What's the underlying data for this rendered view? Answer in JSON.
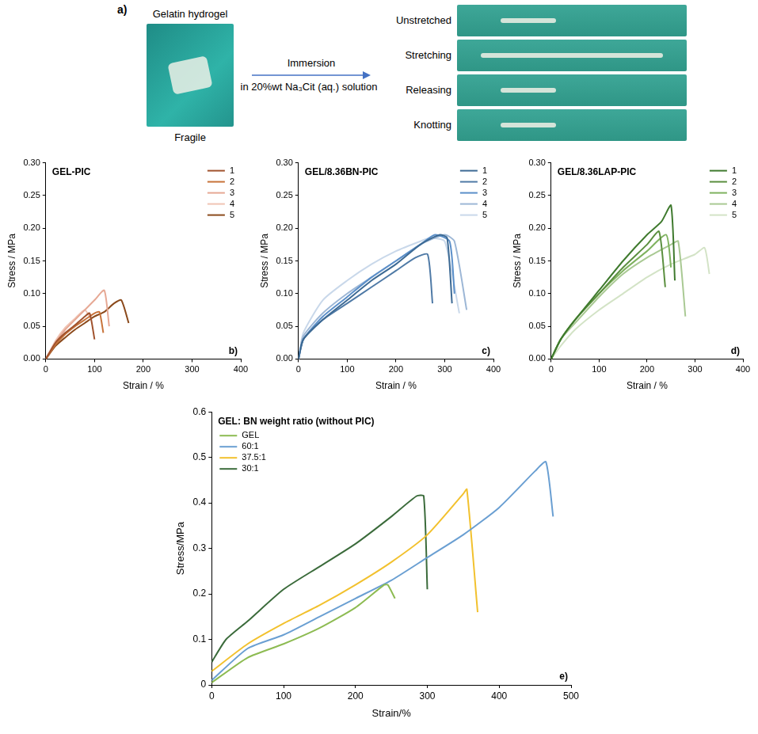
{
  "panel_a": {
    "label": "a)",
    "left": {
      "title": "Gelatin hydrogel",
      "caption": "Fragile"
    },
    "arrow": {
      "above": "Immersion",
      "below": "in 20%wt Na₃Cit (aq.) solution"
    },
    "steps": [
      "Unstretched",
      "Stretching",
      "Releasing",
      "Knotting"
    ]
  },
  "chart_data": [
    {
      "type": "line",
      "title": "GEL-PIC",
      "panel": "b)",
      "x_label": "Strain / %",
      "y_label": "Stress / MPa",
      "xlim": [
        0,
        400
      ],
      "xticks": [
        0,
        100,
        200,
        300,
        400
      ],
      "ylim": [
        0,
        0.3
      ],
      "yticks": [
        {
          "value": 0,
          "label": "0.00"
        },
        {
          "value": 0.05,
          "label": "0.05"
        },
        {
          "value": 0.1,
          "label": "0.10"
        },
        {
          "value": 0.15,
          "label": "0.15"
        },
        {
          "value": 0.2,
          "label": "0.20"
        },
        {
          "value": 0.25,
          "label": "0.25"
        },
        {
          "value": 0.3,
          "label": "0.30"
        }
      ],
      "grid": false,
      "legend": "top-right",
      "series": [
        {
          "name": "1",
          "color": "#a0522d",
          "x": [
            0,
            20,
            40,
            60,
            80,
            90,
            100
          ],
          "values": [
            0,
            0.025,
            0.04,
            0.052,
            0.065,
            0.07,
            0.03
          ]
        },
        {
          "name": "2",
          "color": "#c8733a",
          "x": [
            0,
            20,
            40,
            60,
            80,
            100,
            110,
            118
          ],
          "values": [
            0,
            0.022,
            0.038,
            0.05,
            0.06,
            0.07,
            0.072,
            0.04
          ]
        },
        {
          "name": "3",
          "color": "#e6a894",
          "x": [
            0,
            20,
            40,
            60,
            80,
            100,
            120,
            130
          ],
          "values": [
            0,
            0.025,
            0.045,
            0.06,
            0.075,
            0.09,
            0.105,
            0.05
          ]
        },
        {
          "name": "4",
          "color": "#f0c4b4",
          "x": [
            0,
            20,
            40,
            60,
            80,
            92
          ],
          "values": [
            0,
            0.028,
            0.048,
            0.062,
            0.075,
            0.062
          ]
        },
        {
          "name": "5",
          "color": "#8b4a1c",
          "x": [
            0,
            20,
            40,
            60,
            80,
            100,
            120,
            140,
            155,
            170
          ],
          "values": [
            0,
            0.02,
            0.033,
            0.045,
            0.055,
            0.065,
            0.072,
            0.085,
            0.09,
            0.055
          ]
        }
      ]
    },
    {
      "type": "line",
      "title": "GEL/8.36BN-PIC",
      "panel": "c)",
      "x_label": "Strain / %",
      "y_label": "Stress / MPa",
      "xlim": [
        0,
        400
      ],
      "xticks": [
        0,
        100,
        200,
        300,
        400
      ],
      "ylim": [
        0,
        0.3
      ],
      "yticks": [
        {
          "value": 0,
          "label": "0.00"
        },
        {
          "value": 0.05,
          "label": "0.05"
        },
        {
          "value": 0.1,
          "label": "0.10"
        },
        {
          "value": 0.15,
          "label": "0.15"
        },
        {
          "value": 0.2,
          "label": "0.20"
        },
        {
          "value": 0.25,
          "label": "0.25"
        },
        {
          "value": 0.3,
          "label": "0.30"
        }
      ],
      "grid": false,
      "legend": "top-right",
      "series": [
        {
          "name": "1",
          "color": "#3d6a94",
          "x": [
            0,
            10,
            50,
            100,
            150,
            200,
            250,
            290,
            305,
            315
          ],
          "values": [
            0,
            0.03,
            0.06,
            0.09,
            0.12,
            0.145,
            0.175,
            0.19,
            0.185,
            0.085
          ]
        },
        {
          "name": "2",
          "color": "#4f7aa6",
          "x": [
            0,
            10,
            50,
            100,
            150,
            200,
            240,
            265,
            275
          ],
          "values": [
            0,
            0.03,
            0.06,
            0.085,
            0.11,
            0.135,
            0.155,
            0.16,
            0.085
          ]
        },
        {
          "name": "3",
          "color": "#5b8fc9",
          "x": [
            0,
            10,
            50,
            100,
            150,
            200,
            250,
            280,
            310,
            320
          ],
          "values": [
            0,
            0.03,
            0.065,
            0.095,
            0.125,
            0.15,
            0.175,
            0.19,
            0.18,
            0.1
          ]
        },
        {
          "name": "4",
          "color": "#9db7d6",
          "x": [
            0,
            10,
            50,
            100,
            150,
            200,
            250,
            300,
            320,
            345
          ],
          "values": [
            0,
            0.035,
            0.07,
            0.1,
            0.125,
            0.15,
            0.175,
            0.19,
            0.18,
            0.075
          ]
        },
        {
          "name": "5",
          "color": "#c9d8ea",
          "x": [
            0,
            10,
            50,
            100,
            150,
            200,
            250,
            270,
            300,
            330
          ],
          "values": [
            0,
            0.04,
            0.09,
            0.12,
            0.145,
            0.165,
            0.18,
            0.185,
            0.18,
            0.07
          ]
        }
      ]
    },
    {
      "type": "line",
      "title": "GEL/8.36LAP-PIC",
      "panel": "d)",
      "x_label": "Strain / %",
      "y_label": "Stress / MPa",
      "xlim": [
        0,
        400
      ],
      "xticks": [
        0,
        100,
        200,
        300,
        400
      ],
      "ylim": [
        0,
        0.3
      ],
      "yticks": [
        {
          "value": 0,
          "label": "0.00"
        },
        {
          "value": 0.05,
          "label": "0.05"
        },
        {
          "value": 0.1,
          "label": "0.10"
        },
        {
          "value": 0.15,
          "label": "0.15"
        },
        {
          "value": 0.2,
          "label": "0.20"
        },
        {
          "value": 0.25,
          "label": "0.25"
        },
        {
          "value": 0.3,
          "label": "0.30"
        }
      ],
      "grid": false,
      "legend": "top-right",
      "series": [
        {
          "name": "1",
          "color": "#3f7a2e",
          "x": [
            0,
            20,
            50,
            100,
            150,
            200,
            230,
            250,
            258
          ],
          "values": [
            0,
            0.03,
            0.06,
            0.105,
            0.15,
            0.19,
            0.21,
            0.235,
            0.12
          ]
        },
        {
          "name": "2",
          "color": "#5b8f3f",
          "x": [
            0,
            20,
            50,
            100,
            150,
            200,
            225,
            238
          ],
          "values": [
            0,
            0.03,
            0.06,
            0.1,
            0.14,
            0.175,
            0.195,
            0.11
          ]
        },
        {
          "name": "3",
          "color": "#7fb25f",
          "x": [
            0,
            20,
            50,
            100,
            150,
            200,
            240,
            250
          ],
          "values": [
            0,
            0.03,
            0.06,
            0.1,
            0.135,
            0.165,
            0.19,
            0.14
          ]
        },
        {
          "name": "4",
          "color": "#a9c993",
          "x": [
            0,
            20,
            50,
            100,
            150,
            200,
            250,
            265,
            280
          ],
          "values": [
            0,
            0.03,
            0.055,
            0.095,
            0.13,
            0.155,
            0.175,
            0.18,
            0.065
          ]
        },
        {
          "name": "5",
          "color": "#d3e3c6",
          "x": [
            0,
            20,
            50,
            100,
            150,
            200,
            250,
            300,
            320,
            330
          ],
          "values": [
            0,
            0.02,
            0.045,
            0.075,
            0.1,
            0.125,
            0.145,
            0.16,
            0.17,
            0.13
          ]
        }
      ]
    },
    {
      "type": "line",
      "title": "GEL: BN weight ratio (without PIC)",
      "panel": "e)",
      "x_label": "Strain/%",
      "y_label": "Stress/MPa",
      "xlim": [
        0,
        500
      ],
      "xticks": [
        0,
        100,
        200,
        300,
        400,
        500
      ],
      "ylim": [
        0,
        0.6
      ],
      "yticks": [
        0,
        0.1,
        0.2,
        0.3,
        0.4,
        0.5,
        0.6
      ],
      "grid": false,
      "legend": "top-left",
      "series": [
        {
          "name": "GEL",
          "color": "#8dbb52",
          "x": [
            0,
            50,
            100,
            150,
            200,
            240,
            245,
            255
          ],
          "values": [
            0.005,
            0.06,
            0.09,
            0.125,
            0.17,
            0.22,
            0.22,
            0.19
          ]
        },
        {
          "name": "60:1",
          "color": "#6a9fd2",
          "x": [
            0,
            50,
            100,
            150,
            200,
            250,
            300,
            350,
            400,
            450,
            465,
            475
          ],
          "values": [
            0.01,
            0.08,
            0.11,
            0.15,
            0.19,
            0.23,
            0.28,
            0.33,
            0.39,
            0.47,
            0.49,
            0.37
          ]
        },
        {
          "name": "37.5:1",
          "color": "#f2c12e",
          "x": [
            0,
            50,
            100,
            150,
            200,
            250,
            300,
            350,
            355,
            370
          ],
          "values": [
            0.03,
            0.09,
            0.135,
            0.175,
            0.22,
            0.27,
            0.33,
            0.42,
            0.43,
            0.16
          ]
        },
        {
          "name": "30:1",
          "color": "#3b6b3b",
          "x": [
            0,
            20,
            50,
            100,
            150,
            200,
            250,
            285,
            295,
            300
          ],
          "values": [
            0.05,
            0.1,
            0.14,
            0.21,
            0.26,
            0.31,
            0.37,
            0.415,
            0.415,
            0.21
          ]
        }
      ]
    }
  ]
}
